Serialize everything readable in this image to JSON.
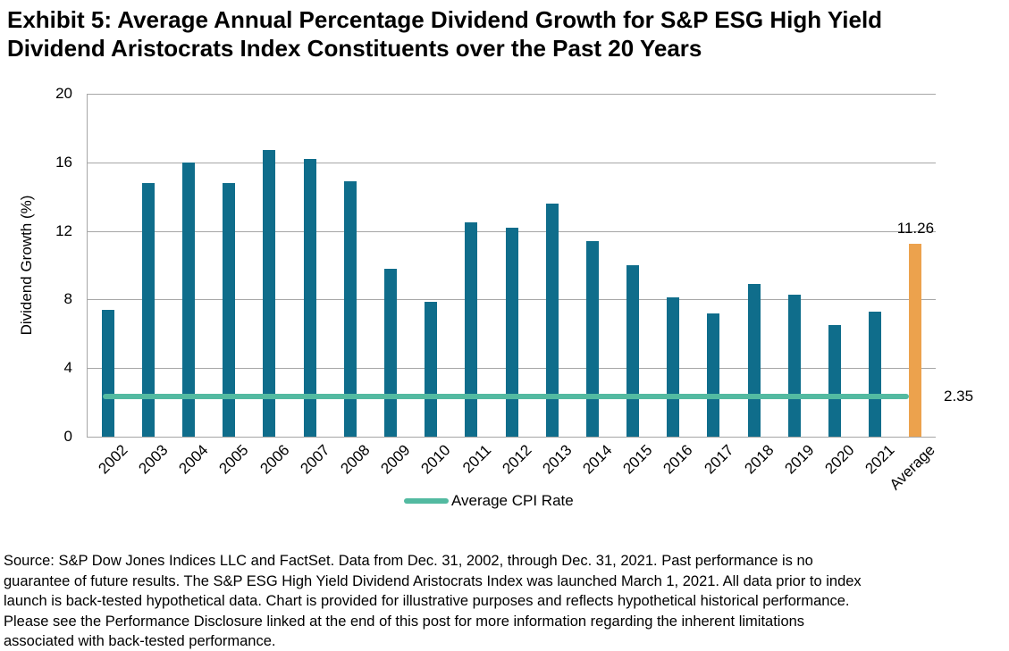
{
  "title": {
    "lines": [
      "Exhibit 5: Average Annual Percentage Dividend Growth for S&P ESG High Yield",
      "Dividend Aristocrats Index Constituents over the Past 20 Years"
    ]
  },
  "chart_data": {
    "type": "bar",
    "title": "Exhibit 5: Average Annual Percentage Dividend Growth for S&P ESG High Yield Dividend Aristocrats Index Constituents over the Past 20 Years",
    "xlabel": "",
    "ylabel": "Dividend Growth (%)",
    "ylim": [
      0,
      20
    ],
    "yticks": [
      0,
      4,
      8,
      12,
      16,
      20
    ],
    "grid": true,
    "categories": [
      "2002",
      "2003",
      "2004",
      "2005",
      "2006",
      "2007",
      "2008",
      "2009",
      "2010",
      "2011",
      "2012",
      "2013",
      "2014",
      "2015",
      "2016",
      "2017",
      "2018",
      "2019",
      "2020",
      "2021",
      "Average"
    ],
    "values": [
      7.4,
      14.8,
      16.0,
      14.8,
      16.7,
      16.2,
      14.9,
      9.8,
      7.85,
      12.5,
      12.2,
      13.6,
      11.4,
      10.0,
      8.1,
      7.2,
      8.9,
      8.3,
      6.5,
      7.3,
      11.26
    ],
    "highlight_category": "Average",
    "highlight_value_label": "11.26",
    "reference_line": {
      "value": 2.35,
      "label": "2.35",
      "legend": "Average CPI Rate"
    },
    "legend_position": "bottom-center",
    "colors": {
      "bar": "#0f6d8b",
      "highlight": "#eca24d",
      "reference_line": "#53baa1",
      "gridline": "#a6a6a6",
      "text": "#000000"
    }
  },
  "footer": {
    "lines": [
      "Source: S&P Dow Jones Indices LLC and FactSet. Data from Dec. 31, 2002, through Dec. 31, 2021. Past performance is no",
      "guarantee of future results. The S&P ESG High Yield Dividend Aristocrats Index was launched March 1, 2021. All data prior to index",
      "launch is back-tested hypothetical data. Chart is provided for illustrative purposes and reflects hypothetical historical performance.",
      "Please see the Performance Disclosure linked at the end of this post for more information regarding the inherent limitations",
      "associated with back-tested performance."
    ]
  }
}
